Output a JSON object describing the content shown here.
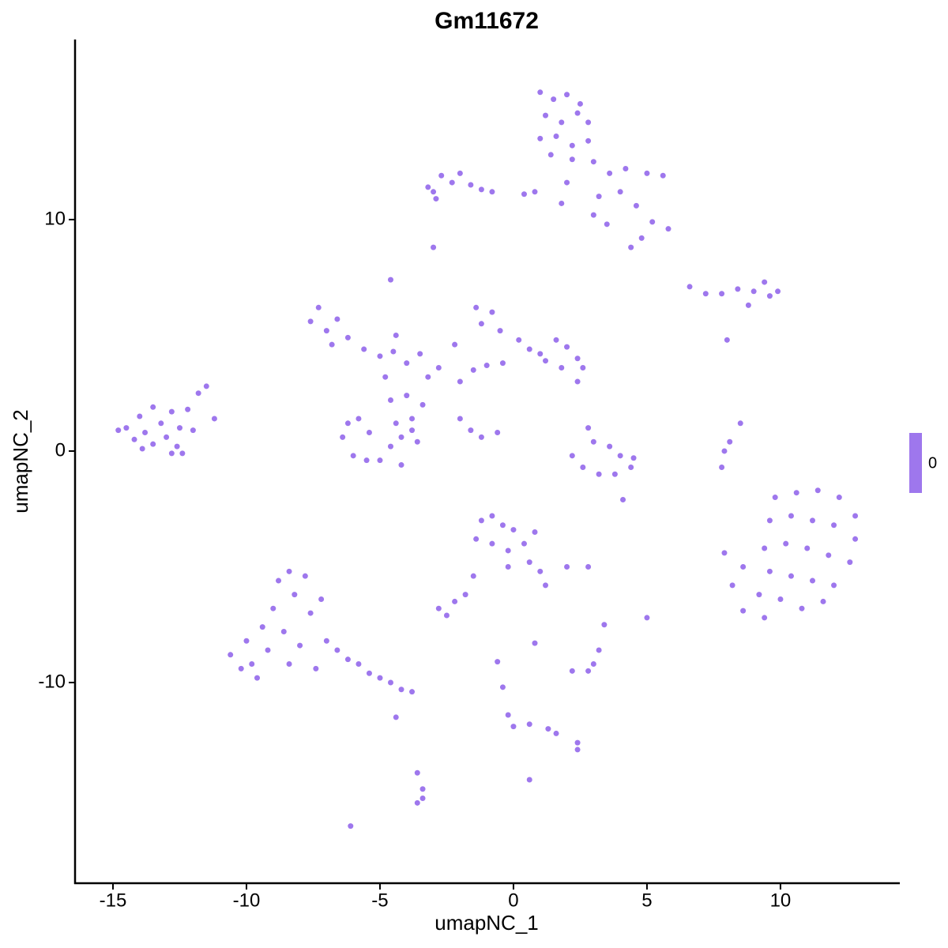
{
  "chart_data": {
    "type": "scatter",
    "title": "Gm11672",
    "x_label": "umapNC_1",
    "y_label": "umapNC_2",
    "color": "#9e77ed",
    "xlim": [
      -16.42,
      14.44
    ],
    "ylim": [
      -18.67,
      17.78
    ],
    "xticks": [
      -15,
      -10,
      -5,
      0,
      5,
      10
    ],
    "yticks": [
      -10,
      0,
      10
    ],
    "colorbar_ticks": [
      0
    ],
    "x": [
      -14.5,
      -14.2,
      -14,
      -13.8,
      -13.5,
      -13.5,
      -13.2,
      -13,
      -12.8,
      -12.6,
      -12.5,
      -12.2,
      -12,
      -11.8,
      -11.5,
      -11.2,
      -12.8,
      -13.9,
      -14.8,
      -12.4,
      1,
      1.5,
      2,
      2.5,
      1.2,
      1.8,
      2.4,
      2.8,
      1,
      1.6,
      2.2,
      2.8,
      1.4,
      2.2,
      3,
      3.6,
      4.2,
      5,
      5.6,
      4,
      4.6,
      5.2,
      5.8,
      4.8,
      4.4,
      3.2,
      2,
      1.8,
      0.8,
      0.4,
      3,
      3.5,
      -3,
      -2.7,
      -2.3,
      -2,
      -1.6,
      -1.2,
      -0.8,
      -3.2,
      -2.9,
      -3,
      -4.6,
      6.6,
      7.2,
      7.8,
      8.4,
      9,
      9.4,
      9.9,
      9.6,
      8.8,
      8,
      -7.6,
      -7.3,
      -7,
      -6.6,
      -6.8,
      -6.2,
      -5.6,
      -5,
      -4.5,
      -4,
      -3.5,
      -4.4,
      -4.8,
      -4.6,
      -4,
      -3.8,
      -3.4,
      -3.2,
      -2.8,
      -2.2,
      -2,
      -1.5,
      -1,
      -0.4,
      -1.2,
      -1.4,
      -0.8,
      -0.5,
      0.2,
      0.6,
      1,
      1.6,
      2,
      2.4,
      2.6,
      1.8,
      1.2,
      2.4,
      -6.2,
      -6.4,
      -6,
      -5.5,
      -5,
      -4.6,
      -4.2,
      -3.8,
      -3.6,
      -4.4,
      -5.4,
      -5.8,
      -4.2,
      -2,
      -1.6,
      -1.2,
      -0.6,
      2.8,
      3,
      3.6,
      4,
      2.2,
      2.6,
      3.2,
      3.8,
      4.4,
      4.5,
      8.5,
      8.1,
      7.9,
      7.8,
      4.1,
      9.8,
      10.6,
      11.4,
      12.2,
      12.8,
      9.6,
      10.4,
      11.2,
      12,
      12.8,
      9.4,
      10.2,
      11,
      11.8,
      12.6,
      9.6,
      10.4,
      11.2,
      12,
      9.2,
      10,
      10.8,
      11.6,
      8.6,
      8.2,
      7.9,
      8.6,
      9.4,
      -10.6,
      -10.2,
      -10,
      -9.6,
      -9.4,
      -9.2,
      -9,
      -8.8,
      -8.6,
      -8.4,
      -8.2,
      -8,
      -7.8,
      -7.6,
      -7.4,
      -7.2,
      -7,
      -6.6,
      -6.2,
      -5.8,
      -5.4,
      -5,
      -4.6,
      -4.2,
      -3.8,
      -9.8,
      -8.4,
      -4.4,
      -1.2,
      -0.8,
      -0.4,
      0,
      -1.4,
      -0.8,
      -0.2,
      0.4,
      0.6,
      1,
      1.2,
      -0.2,
      -1.8,
      -2.2,
      -2.8,
      -2.5,
      -1.5,
      0.8,
      2,
      2.8,
      5,
      3.4,
      3.2,
      2.2,
      2.8,
      3,
      -0.6,
      -0.4,
      -0.2,
      0,
      0.6,
      1.6,
      2.4,
      2.4,
      0.6,
      -3.6,
      -3.4,
      -3.6,
      -3.4,
      -6.1,
      1.3,
      0.8
    ],
    "values": [
      1,
      0.5,
      1.5,
      0.8,
      0.3,
      1.9,
      1.2,
      0.6,
      1.7,
      0.2,
      1.0,
      1.8,
      0.9,
      2.5,
      2.8,
      1.4,
      -0.1,
      0.1,
      0.9,
      -0.1,
      15.5,
      15.2,
      15.4,
      15.0,
      14.5,
      14.2,
      14.6,
      14.2,
      13.5,
      13.6,
      13.2,
      13.4,
      12.8,
      12.6,
      12.5,
      12.0,
      12.2,
      12.0,
      11.9,
      11.2,
      10.6,
      9.9,
      9.6,
      9.2,
      8.8,
      11.0,
      11.6,
      10.7,
      11.2,
      11.1,
      10.2,
      9.8,
      11.2,
      11.9,
      11.6,
      12.0,
      11.5,
      11.3,
      11.2,
      11.4,
      10.9,
      8.8,
      7.4,
      7.1,
      6.8,
      6.8,
      7.0,
      6.9,
      7.3,
      6.9,
      6.7,
      6.3,
      4.8,
      5.6,
      6.2,
      5.2,
      5.7,
      4.6,
      4.9,
      4.4,
      4.1,
      4.3,
      3.8,
      4.2,
      5.0,
      3.2,
      2.2,
      2.4,
      1.4,
      2.0,
      3.2,
      3.6,
      4.6,
      3.0,
      3.5,
      3.7,
      3.8,
      5.5,
      6.2,
      6.0,
      5.2,
      4.8,
      4.4,
      4.2,
      4.8,
      4.5,
      4.0,
      3.6,
      3.6,
      3.9,
      3.0,
      1.2,
      0.6,
      -0.2,
      -0.4,
      -0.4,
      0.2,
      0.6,
      0.9,
      0.4,
      1.2,
      0.8,
      1.4,
      -0.6,
      1.4,
      0.9,
      0.6,
      0.8,
      1.0,
      0.4,
      0.2,
      -0.2,
      -0.2,
      -0.7,
      -1.0,
      -1.0,
      -0.7,
      -0.3,
      1.2,
      0.4,
      0,
      -0.7,
      -2.1,
      -2.0,
      -1.8,
      -1.7,
      -2.0,
      -2.8,
      -3.0,
      -2.8,
      -3.0,
      -3.2,
      -3.8,
      -4.2,
      -4.0,
      -4.2,
      -4.5,
      -4.8,
      -5.2,
      -5.4,
      -5.6,
      -5.8,
      -6.2,
      -6.4,
      -6.8,
      -6.5,
      -6.9,
      -5.8,
      -4.4,
      -5.0,
      -7.2,
      -8.8,
      -9.4,
      -8.2,
      -9.8,
      -7.6,
      -8.6,
      -6.8,
      -5.6,
      -7.8,
      -9.2,
      -6.2,
      -8.4,
      -5.4,
      -7.0,
      -9.4,
      -6.4,
      -8.2,
      -8.6,
      -9.0,
      -9.2,
      -9.6,
      -9.8,
      -10.0,
      -10.3,
      -10.4,
      -9.2,
      -5.2,
      -11.5,
      -3.0,
      -2.8,
      -3.2,
      -3.4,
      -3.8,
      -4.0,
      -4.3,
      -4.0,
      -4.8,
      -5.2,
      -5.8,
      -5.0,
      -6.2,
      -6.5,
      -6.8,
      -7.1,
      -5.4,
      -8.3,
      -5,
      -5,
      -7.2,
      -7.5,
      -8.6,
      -9.5,
      -9.5,
      -9.2,
      -9.1,
      -10.2,
      -11.4,
      -11.9,
      -11.8,
      -12.2,
      -12.6,
      -12.9,
      -14.2,
      -13.9,
      -14.6,
      -15.2,
      -15.0,
      -16.2,
      -12,
      -3.5
    ]
  }
}
